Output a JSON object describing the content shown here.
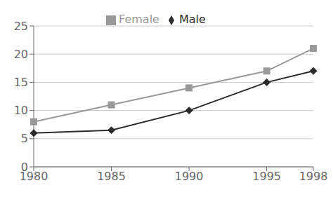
{
  "chart_data": {
    "type": "line",
    "x": [
      1980,
      1985,
      1990,
      1995,
      1998
    ],
    "series": [
      {
        "name": "Male",
        "color": "#2b2b2b",
        "marker": "diamond",
        "values": [
          6,
          6.5,
          10,
          15,
          17
        ]
      },
      {
        "name": "Female",
        "color": "#999999",
        "marker": "square",
        "values": [
          8,
          11,
          14,
          17,
          21
        ]
      }
    ],
    "xlim": [
      1980,
      1998
    ],
    "xticks": [
      1980,
      1985,
      1990,
      1995,
      1998
    ],
    "ylim": [
      0,
      25
    ],
    "yticks": [
      0,
      5,
      10,
      15,
      20,
      25
    ],
    "grid": "y",
    "legend": "top"
  }
}
